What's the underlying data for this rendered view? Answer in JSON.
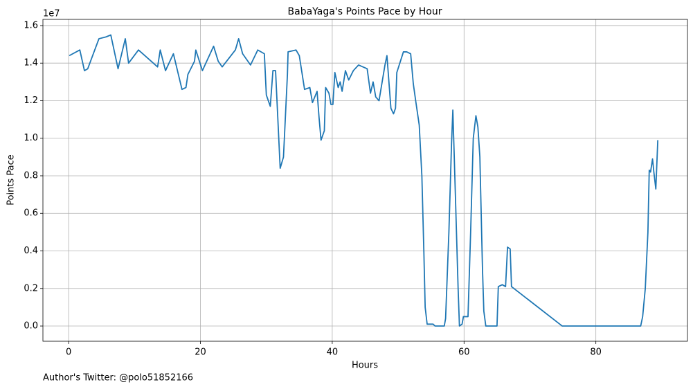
{
  "chart_data": {
    "type": "line",
    "title": "BabaYaga's Points Pace by Hour",
    "x_label": "Hours",
    "y_label": "Points Pace",
    "y_offset_text": "1e7",
    "footnote": "Author's Twitter: @polo51852166",
    "xlim": [
      -3.9,
      93.9
    ],
    "xticks": [
      0,
      20,
      40,
      60,
      80
    ],
    "ylim": [
      -0.081,
      1.633
    ],
    "yticks": [
      {
        "value": 0,
        "label": "0.0"
      },
      0.2,
      0.4,
      0.6,
      0.8,
      {
        "value": 1,
        "label": "1.0"
      },
      1.2,
      1.4,
      1.6
    ],
    "grid": true,
    "series": [
      {
        "name": "Points Pace",
        "color": "#1f77b4",
        "x": [
          0.1,
          1.7,
          2.4,
          2.9,
          4.6,
          5.7,
          6.4,
          7.5,
          8.6,
          9.1,
          10.6,
          13.5,
          13.9,
          14.7,
          15.9,
          17.2,
          17.8,
          18.1,
          19.1,
          19.3,
          20.3,
          22.0,
          22.7,
          23.3,
          25.3,
          25.8,
          26.4,
          27.6,
          28.7,
          29.7,
          30.0,
          30.6,
          31.0,
          31.4,
          32.1,
          32.6,
          33.2,
          33.3,
          34.5,
          35.0,
          35.4,
          35.8,
          36.6,
          37.0,
          37.7,
          38.0,
          38.3,
          38.8,
          39.0,
          39.5,
          39.8,
          40.1,
          40.4,
          40.9,
          41.2,
          41.5,
          42.0,
          42.5,
          43.2,
          44.0,
          45.3,
          45.8,
          46.2,
          46.6,
          47.1,
          48.0,
          48.3,
          48.9,
          49.3,
          49.6,
          49.8,
          50.8,
          51.3,
          51.9,
          52.3,
          52.7,
          53.2,
          53.6,
          53.9,
          54.1,
          54.4,
          55.3,
          55.6,
          57.0,
          57.2,
          57.7,
          58.1,
          58.3,
          58.6,
          59.1,
          59.3,
          59.7,
          59.9,
          60.6,
          61.0,
          61.4,
          61.8,
          62.1,
          62.4,
          62.8,
          63.0,
          63.3,
          65.0,
          65.2,
          65.8,
          66.3,
          66.6,
          67.0,
          67.2,
          74.9,
          86.8,
          87.1,
          87.5,
          87.9,
          88.1,
          88.3,
          88.6,
          88.8,
          89.1,
          89.4
        ],
        "values": [
          1.44,
          1.47,
          1.36,
          1.37,
          1.53,
          1.54,
          1.55,
          1.37,
          1.53,
          1.4,
          1.47,
          1.38,
          1.47,
          1.36,
          1.45,
          1.26,
          1.27,
          1.34,
          1.41,
          1.47,
          1.36,
          1.49,
          1.41,
          1.38,
          1.47,
          1.53,
          1.45,
          1.39,
          1.47,
          1.45,
          1.23,
          1.17,
          1.36,
          1.36,
          0.84,
          0.9,
          1.34,
          1.46,
          1.47,
          1.44,
          1.35,
          1.26,
          1.27,
          1.19,
          1.25,
          1.11,
          0.99,
          1.04,
          1.27,
          1.24,
          1.18,
          1.18,
          1.35,
          1.27,
          1.3,
          1.25,
          1.36,
          1.31,
          1.36,
          1.39,
          1.37,
          1.24,
          1.3,
          1.22,
          1.2,
          1.39,
          1.44,
          1.16,
          1.13,
          1.16,
          1.35,
          1.46,
          1.46,
          1.45,
          1.29,
          1.19,
          1.07,
          0.8,
          0.4,
          0.1,
          0.01,
          0.01,
          0,
          0,
          0.04,
          0.5,
          0.97,
          1.15,
          0.8,
          0.2,
          0,
          0.01,
          0.05,
          0.05,
          0.5,
          1.0,
          1.12,
          1.06,
          0.9,
          0.3,
          0.08,
          0,
          0,
          0.21,
          0.22,
          0.21,
          0.42,
          0.41,
          0.21,
          0,
          0,
          0.05,
          0.2,
          0.5,
          0.83,
          0.82,
          0.89,
          0.82,
          0.73,
          0.99
        ]
      }
    ]
  }
}
